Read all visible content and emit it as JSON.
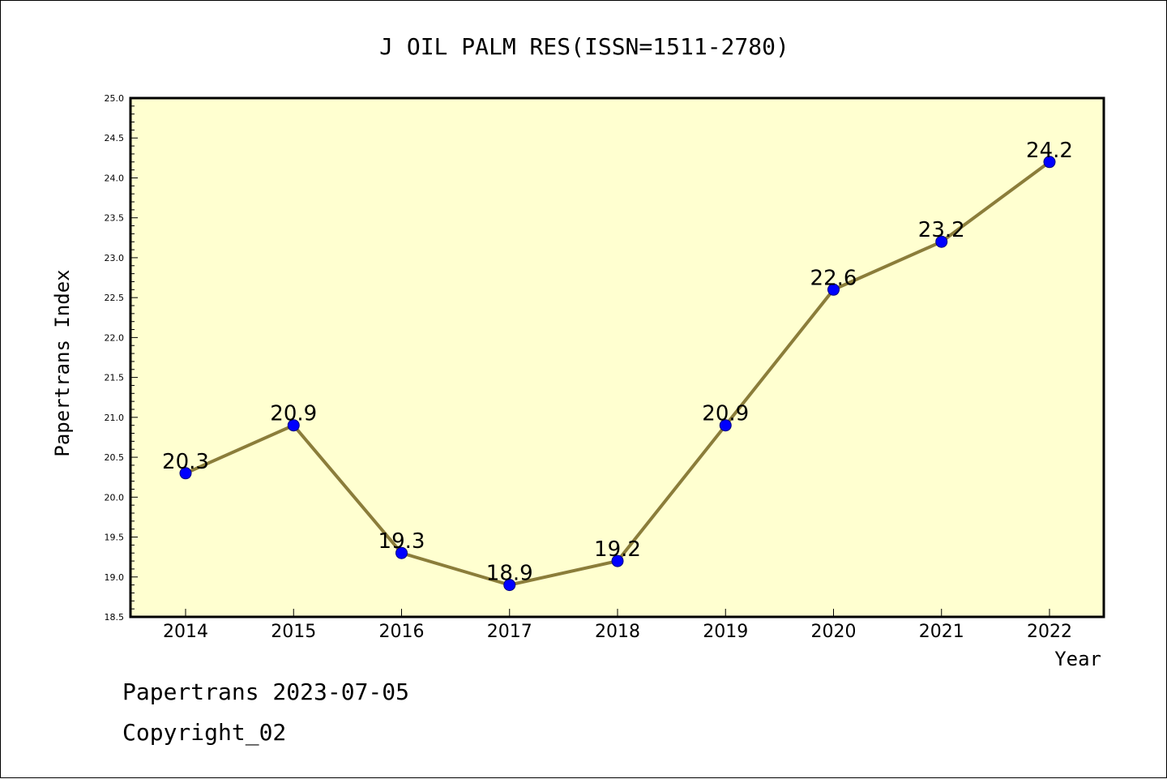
{
  "chart_data": {
    "type": "line",
    "title": "J OIL PALM RES(ISSN=1511-2780)",
    "xlabel": "Year",
    "ylabel": "Papertrans Index",
    "categories": [
      "2014",
      "2015",
      "2016",
      "2017",
      "2018",
      "2019",
      "2020",
      "2021",
      "2022"
    ],
    "series": [
      {
        "values": [
          20.3,
          20.9,
          19.3,
          18.9,
          19.2,
          20.9,
          22.6,
          23.2,
          24.2
        ],
        "labels": [
          "20.3",
          "20.9",
          "19.3",
          "18.9",
          "19.2",
          "20.9",
          "22.6",
          "23.2",
          "24.2"
        ]
      }
    ],
    "ylim": [
      18.5,
      25.0
    ],
    "yticks": [
      "18.5",
      "19.0",
      "19.5",
      "20.0",
      "20.5",
      "21.0",
      "21.5",
      "22.0",
      "22.5",
      "23.0",
      "23.5",
      "24.0",
      "24.5",
      "25.0"
    ],
    "grid": false,
    "colors": {
      "plot_background": "#ffffd0",
      "line": "#8b7d3a",
      "marker": "#0000ff"
    }
  },
  "footer": {
    "date_line": "Papertrans 2023-07-05",
    "copyright": "Copyright_02"
  }
}
